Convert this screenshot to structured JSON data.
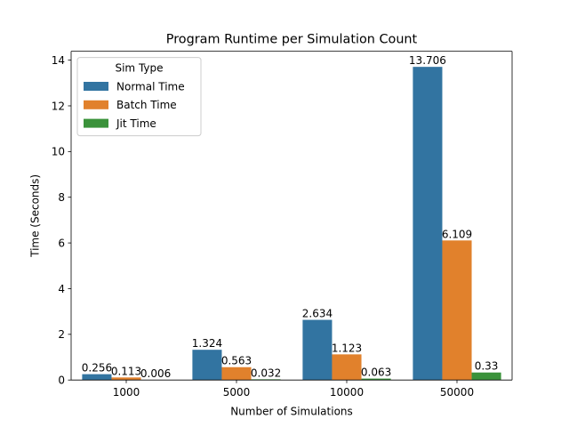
{
  "chart_data": {
    "type": "bar",
    "title": "Program Runtime per Simulation Count",
    "xlabel": "Number of Simulations",
    "ylabel": "Time (Seconds)",
    "categories": [
      "1000",
      "5000",
      "10000",
      "50000"
    ],
    "ylim": [
      0,
      14.39
    ],
    "yticks": [
      0,
      2,
      4,
      6,
      8,
      10,
      12,
      14
    ],
    "ytick_labels": [
      "0",
      "2",
      "4",
      "6",
      "8",
      "10",
      "12",
      "14"
    ],
    "grid": false,
    "legend": {
      "title": "Sim Type",
      "placement": "top-left"
    },
    "series": [
      {
        "name": "Normal Time",
        "color": "#3274a1",
        "values": [
          0.256,
          1.324,
          2.634,
          13.706
        ],
        "labels": [
          "0.256",
          "1.324",
          "2.634",
          "13.706"
        ]
      },
      {
        "name": "Batch Time",
        "color": "#e1812c",
        "values": [
          0.113,
          0.563,
          1.123,
          6.109
        ],
        "labels": [
          "0.113",
          "0.563",
          "1.123",
          "6.109"
        ]
      },
      {
        "name": "Jit Time",
        "color": "#3a923a",
        "values": [
          0.006,
          0.032,
          0.063,
          0.33
        ],
        "labels": [
          "0.006",
          "0.032",
          "0.063",
          "0.33"
        ]
      }
    ]
  }
}
